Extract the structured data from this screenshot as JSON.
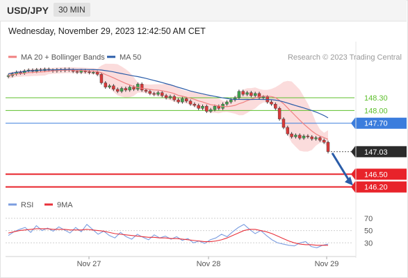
{
  "header": {
    "symbol": "USD/JPY",
    "timeframe": "30 MIN",
    "datetime": "Wednesday, November 29, 2023 12:42:50 AM CET"
  },
  "chart_data": [
    {
      "type": "candlestick",
      "title": "USD/JPY",
      "legend": [
        {
          "name": "MA 20 + Bollinger Bands",
          "color": "#f08080"
        },
        {
          "name": "MA 50",
          "color": "#2a5ca8"
        }
      ],
      "legend_position": "top-left",
      "credit": "Research © 2023 Trading Central",
      "x_ticks": [
        "Nov 27",
        "Nov 28",
        "Nov 29"
      ],
      "ylim": [
        145.95,
        149.05
      ],
      "last_price": 147.03,
      "levels": [
        {
          "label": "148.30",
          "value": 148.3,
          "color": "#5cbf2a",
          "kind": "resistance"
        },
        {
          "label": "148.00",
          "value": 148.0,
          "color": "#5cbf2a",
          "kind": "resistance"
        },
        {
          "label": "147.70",
          "value": 147.7,
          "color": "#3b7ddd",
          "kind": "pivot"
        },
        {
          "label": "146.50",
          "value": 146.5,
          "color": "#e8232a",
          "kind": "support"
        },
        {
          "label": "146.20",
          "value": 146.2,
          "color": "#e8232a",
          "kind": "support"
        }
      ],
      "last_price_label": "147.03",
      "close_series": [
        148.82,
        148.86,
        148.9,
        148.88,
        148.93,
        148.95,
        148.92,
        148.96,
        148.94,
        148.97,
        148.95,
        148.93,
        148.96,
        148.94,
        148.97,
        148.95,
        148.92,
        148.9,
        148.94,
        148.91,
        148.89,
        148.9,
        148.85,
        148.65,
        148.55,
        148.58,
        148.5,
        148.45,
        148.52,
        148.48,
        148.55,
        148.5,
        148.62,
        148.48,
        148.45,
        148.4,
        148.38,
        148.42,
        148.35,
        148.3,
        148.33,
        148.25,
        148.2,
        148.28,
        148.22,
        148.15,
        148.12,
        148.05,
        148.1,
        147.98,
        148.02,
        148.1,
        148.05,
        148.15,
        148.2,
        148.25,
        148.3,
        148.45,
        148.38,
        148.42,
        148.35,
        148.4,
        148.3,
        148.32,
        148.2,
        148.15,
        148.05,
        147.8,
        147.6,
        147.45,
        147.38,
        147.42,
        147.35,
        147.4,
        147.38,
        147.33,
        147.36,
        147.3,
        147.25,
        147.03
      ]
    },
    {
      "type": "line",
      "title": "",
      "legend": [
        {
          "name": "RSI",
          "color": "#7b9de0"
        },
        {
          "name": "9MA",
          "color": "#e8303a"
        }
      ],
      "legend_position": "top-left",
      "ylim": [
        10,
        80
      ],
      "y_ticks": [
        70,
        50,
        30
      ],
      "x_ticks": [
        "Nov 27",
        "Nov 28",
        "Nov 29"
      ],
      "series": [
        {
          "name": "RSI",
          "values": [
            42,
            48,
            52,
            55,
            47,
            58,
            50,
            54,
            49,
            56,
            51,
            46,
            55,
            48,
            60,
            52,
            44,
            49,
            42,
            38,
            47,
            40,
            36,
            44,
            39,
            35,
            43,
            38,
            41,
            36,
            40,
            34,
            37,
            30,
            33,
            29,
            35,
            38,
            44,
            40,
            48,
            55,
            60,
            52,
            45,
            50,
            42,
            35,
            30,
            28,
            26,
            25,
            30,
            32,
            24,
            22,
            26,
            28
          ]
        },
        {
          "name": "9MA",
          "values": [
            46,
            48,
            50,
            51,
            52,
            53,
            53,
            53,
            52,
            52,
            52,
            51,
            51,
            51,
            52,
            51,
            50,
            49,
            47,
            45,
            44,
            43,
            42,
            41,
            40,
            39,
            39,
            38,
            38,
            37,
            37,
            36,
            35,
            34,
            33,
            32,
            32,
            33,
            35,
            38,
            42,
            46,
            50,
            52,
            52,
            50,
            48,
            45,
            41,
            37,
            33,
            30,
            28,
            27,
            27,
            26,
            26,
            26
          ]
        }
      ]
    }
  ]
}
